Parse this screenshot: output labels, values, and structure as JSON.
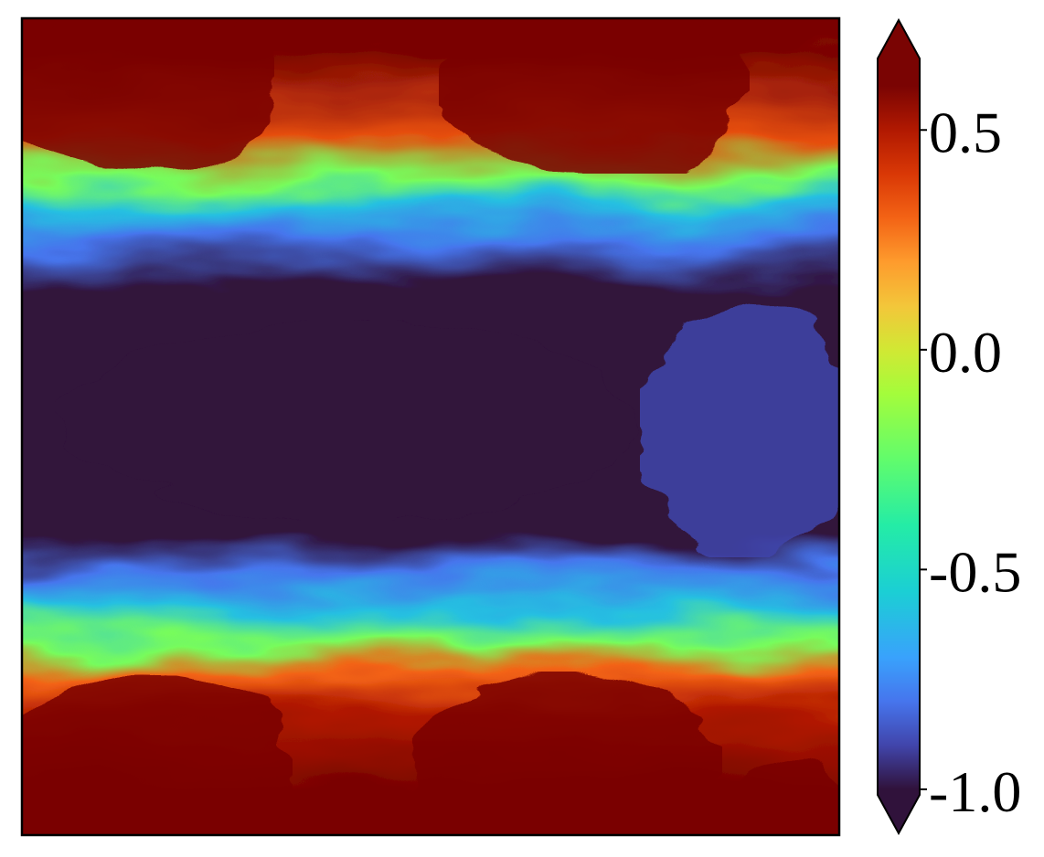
{
  "chart_data": {
    "type": "heatmap",
    "title": "",
    "xlabel": "",
    "ylabel": "",
    "x_ticks": [],
    "y_ticks": [],
    "colormap": "turbo",
    "vmin": -1.1,
    "vmax": 0.75,
    "colorbar": {
      "ticks": [
        0.5,
        0.0,
        -0.5,
        -1.0
      ],
      "tick_labels": [
        "0.5",
        "0.0",
        "-0.5",
        "-1.0"
      ],
      "extend": "both",
      "position": "right"
    },
    "field_description": {
      "pattern": "horizontal two-phase layered field with wavy interfaces",
      "rows_top_to_bottom": [
        {
          "band": "top",
          "value": 0.6
        },
        {
          "band": "upper-interface",
          "value": -0.5
        },
        {
          "band": "middle",
          "value": -1.0
        },
        {
          "band": "lower-interface",
          "value": -0.5
        },
        {
          "band": "bottom",
          "value": 0.6
        }
      ]
    },
    "colormap_stops": [
      {
        "v": -1.1,
        "color": "#30123b"
      },
      {
        "v": -1.0,
        "color": "#30123b"
      },
      {
        "v": -0.9,
        "color": "#4145ab"
      },
      {
        "v": -0.8,
        "color": "#4675ed"
      },
      {
        "v": -0.7,
        "color": "#39a2fc"
      },
      {
        "v": -0.55,
        "color": "#1bcfd4"
      },
      {
        "v": -0.4,
        "color": "#24eca6"
      },
      {
        "v": -0.25,
        "color": "#61fc6c"
      },
      {
        "v": -0.1,
        "color": "#a4fc3b"
      },
      {
        "v": 0.0,
        "color": "#d1e834"
      },
      {
        "v": 0.1,
        "color": "#f3c63a"
      },
      {
        "v": 0.2,
        "color": "#fe9b2d"
      },
      {
        "v": 0.3,
        "color": "#f36315"
      },
      {
        "v": 0.4,
        "color": "#d93806"
      },
      {
        "v": 0.5,
        "color": "#b11901"
      },
      {
        "v": 0.6,
        "color": "#7a0403"
      },
      {
        "v": 0.75,
        "color": "#7a0403"
      }
    ]
  }
}
